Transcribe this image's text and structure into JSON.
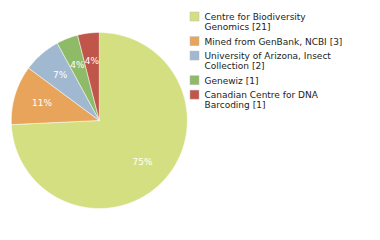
{
  "chart_data": {
    "type": "pie",
    "categories": [
      "Centre for Biodiversity\nGenomics [21]",
      "Mined from GenBank, NCBI [3]",
      "University of Arizona, Insect\nCollection [2]",
      "Genewiz [1]",
      "Canadian Centre for DNA\nBarcoding [1]"
    ],
    "values": [
      75,
      11,
      7,
      4,
      4
    ],
    "value_labels": [
      "75%",
      "11%",
      "7%",
      "4%",
      "4%"
    ],
    "colors": [
      "#d4df82",
      "#e8a45a",
      "#a0b8d0",
      "#8fbb68",
      "#c0554a"
    ],
    "data_labels": true,
    "legend": "right"
  }
}
